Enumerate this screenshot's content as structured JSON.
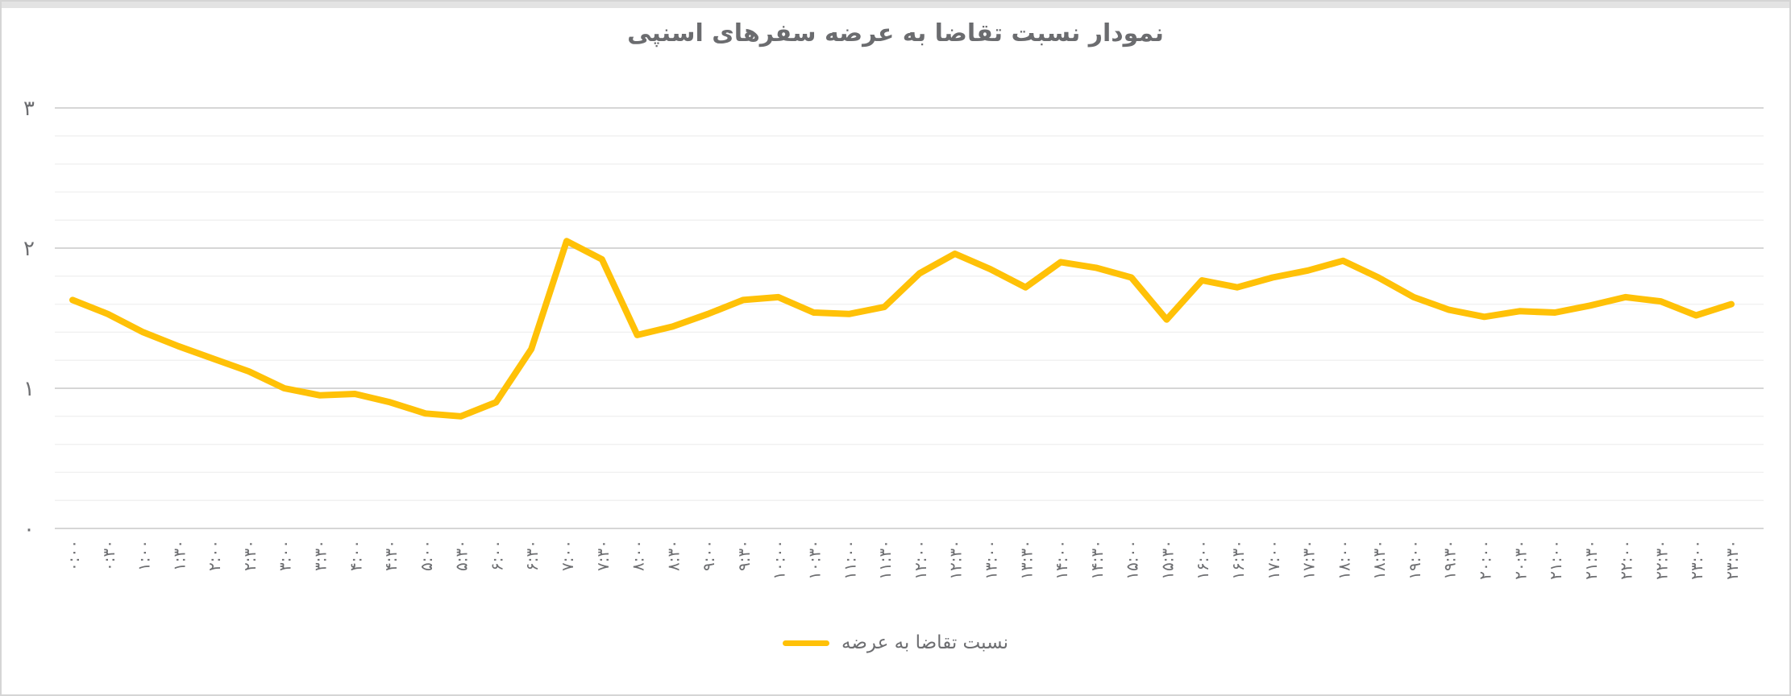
{
  "title": "نمودار نسبت تقاضا به عرضه سفرهای اسنپی",
  "legend": {
    "label": "نسبت تقاضا به عرضه",
    "swatch_color": "#FFC107"
  },
  "colors": {
    "line": "#FFC107",
    "major_grid": "#d6d6d6",
    "minor_grid": "#f1f1f1",
    "axis_text": "#6d6e71",
    "title_text": "#6b6c6f",
    "background": "#ffffff"
  },
  "chart_data": {
    "type": "line",
    "title": "نمودار نسبت تقاضا به عرضه سفرهای اسنپی",
    "xlabel": "",
    "ylabel": "",
    "ylim": [
      0,
      3
    ],
    "y_ticks": [
      0,
      1,
      2,
      3
    ],
    "y_tick_labels": [
      "۰",
      "۱",
      "۲",
      "۳"
    ],
    "minor_grid_step": 0.2,
    "grid": true,
    "legend_position": "bottom",
    "x_labels_rotated_degrees": -90,
    "categories": [
      "۰:۰۰",
      "۰:۳۰",
      "۱:۰۰",
      "۱:۳۰",
      "۲:۰۰",
      "۲:۳۰",
      "۳:۰۰",
      "۳:۳۰",
      "۴:۰۰",
      "۴:۳۰",
      "۵:۰۰",
      "۵:۳۰",
      "۶:۰۰",
      "۶:۳۰",
      "۷:۰۰",
      "۷:۳۰",
      "۸:۰۰",
      "۸:۳۰",
      "۹:۰۰",
      "۹:۳۰",
      "۱۰:۰۰",
      "۱۰:۳۰",
      "۱۱:۰۰",
      "۱۱:۳۰",
      "۱۲:۰۰",
      "۱۲:۳۰",
      "۱۳:۰۰",
      "۱۳:۳۰",
      "۱۴:۰۰",
      "۱۴:۳۰",
      "۱۵:۰۰",
      "۱۵:۳۰",
      "۱۶:۰۰",
      "۱۶:۳۰",
      "۱۷:۰۰",
      "۱۷:۳۰",
      "۱۸:۰۰",
      "۱۸:۳۰",
      "۱۹:۰۰",
      "۱۹:۳۰",
      "۲۰:۰۰",
      "۲۰:۳۰",
      "۲۱:۰۰",
      "۲۱:۳۰",
      "۲۲:۰۰",
      "۲۲:۳۰",
      "۲۳:۰۰",
      "۲۳:۳۰"
    ],
    "series": [
      {
        "name": "نسبت تقاضا به عرضه",
        "color": "#FFC107",
        "values": [
          1.63,
          1.53,
          1.4,
          1.3,
          1.21,
          1.12,
          1.0,
          0.95,
          0.96,
          0.9,
          0.82,
          0.8,
          0.9,
          1.28,
          2.05,
          1.92,
          1.38,
          1.44,
          1.53,
          1.63,
          1.65,
          1.54,
          1.53,
          1.58,
          1.82,
          1.96,
          1.85,
          1.72,
          1.9,
          1.86,
          1.79,
          1.49,
          1.77,
          1.72,
          1.79,
          1.84,
          1.91,
          1.79,
          1.65,
          1.56,
          1.51,
          1.55,
          1.54,
          1.59,
          1.65,
          1.62,
          1.52,
          1.6
        ]
      }
    ]
  }
}
